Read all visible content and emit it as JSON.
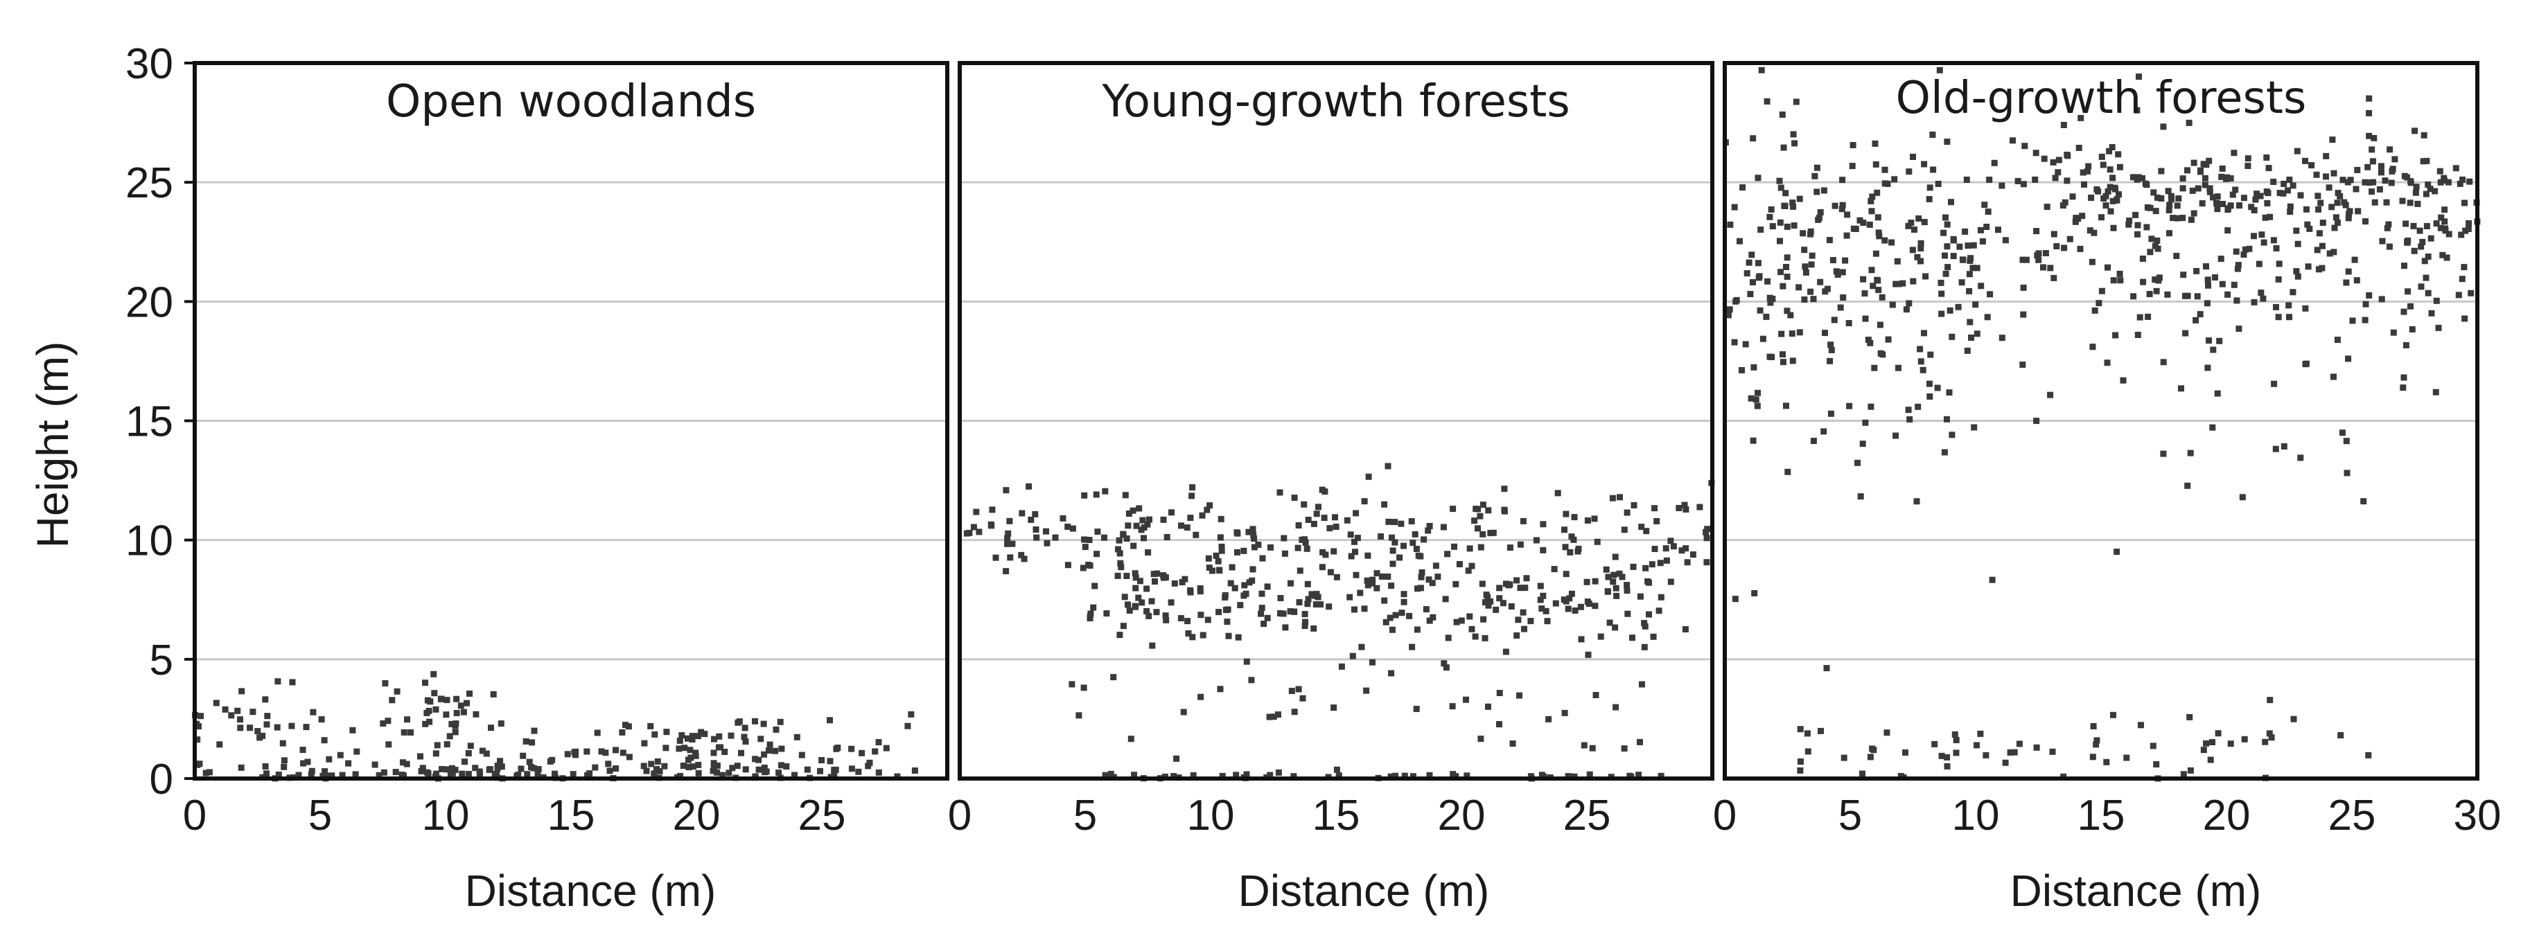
{
  "chart_data": {
    "type": "scatter",
    "ylabel": "Height (m)",
    "xlabel": "Distance (m)",
    "ylim": [
      0,
      30
    ],
    "yticks": [
      0,
      5,
      10,
      15,
      20,
      25,
      30
    ],
    "grid": "horizontal",
    "panels": [
      {
        "title": "Open woodlands",
        "xlim": [
          0,
          30
        ],
        "xticks": [
          0,
          5,
          10,
          15,
          20,
          25
        ],
        "clusters": [
          {
            "x": [
              0,
              29
            ],
            "y_center": 0.3,
            "spread": 0.3,
            "count": 110
          },
          {
            "x": [
              0,
              4
            ],
            "y_center": 2.4,
            "spread": 0.7,
            "count": 28
          },
          {
            "x": [
              4,
              12
            ],
            "y_center": 1.6,
            "spread": 1.2,
            "count": 40
          },
          {
            "x": [
              7,
              11
            ],
            "y_center": 3.1,
            "spread": 0.6,
            "count": 22
          },
          {
            "x": [
              12,
              24
            ],
            "y_center": 1.2,
            "spread": 0.8,
            "count": 60
          },
          {
            "x": [
              17,
              22
            ],
            "y_center": 1.9,
            "spread": 0.4,
            "count": 20
          },
          {
            "x": [
              22,
              29
            ],
            "y_center": 1.0,
            "spread": 0.7,
            "count": 22
          }
        ]
      },
      {
        "title": "Young-growth forests",
        "xlim": [
          0,
          30
        ],
        "xticks": [
          0,
          5,
          10,
          15,
          20,
          25
        ],
        "clusters": [
          {
            "x": [
              0,
              30
            ],
            "y_center": 10.3,
            "spread": 1.0,
            "count": 200
          },
          {
            "x": [
              5,
              28
            ],
            "y_center": 7.4,
            "spread": 0.9,
            "count": 170
          },
          {
            "x": [
              5,
              29
            ],
            "y_center": 8.8,
            "spread": 1.2,
            "count": 80
          },
          {
            "x": [
              4,
              28
            ],
            "y_center": 3.2,
            "spread": 1.5,
            "count": 50
          },
          {
            "x": [
              4,
              28
            ],
            "y_center": 0.1,
            "spread": 0.05,
            "count": 45
          }
        ]
      },
      {
        "title": "Old-growth forests",
        "xlim": [
          0,
          30
        ],
        "xticks": [
          0,
          5,
          10,
          15,
          20,
          25,
          30
        ],
        "clusters": [
          {
            "x": [
              0,
              30
            ],
            "y_center": 22.5,
            "spread": 2.4,
            "count": 480
          },
          {
            "x": [
              13,
              30
            ],
            "y_center": 24.8,
            "spread": 0.8,
            "count": 120
          },
          {
            "x": [
              0,
              10
            ],
            "y_center": 17.5,
            "spread": 2.2,
            "count": 70
          },
          {
            "x": [
              17,
              27
            ],
            "y_center": 15.0,
            "spread": 2.5,
            "count": 20
          },
          {
            "x": [
              2,
              26
            ],
            "y_center": 1.3,
            "spread": 0.6,
            "count": 60
          },
          {
            "x": [
              0,
              27
            ],
            "y_center": 8.0,
            "spread": 3.5,
            "count": 8
          }
        ]
      }
    ]
  }
}
